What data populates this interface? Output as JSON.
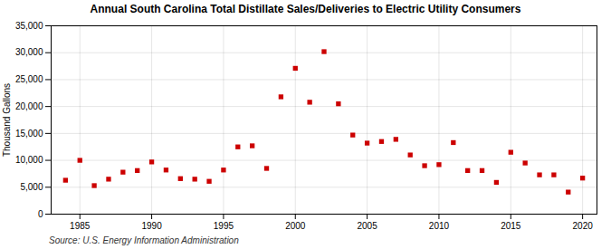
{
  "chart_data": {
    "type": "scatter",
    "title": "Annual South Carolina Total Distillate Sales/Deliveries to Electric Utility Consumers",
    "ylabel": "Thousand Gallons",
    "source": "Source: U.S. Energy Information Administration",
    "x": [
      1984,
      1985,
      1986,
      1987,
      1988,
      1989,
      1990,
      1991,
      1992,
      1993,
      1994,
      1995,
      1996,
      1997,
      1998,
      1999,
      2000,
      2001,
      2002,
      2003,
      2004,
      2005,
      2006,
      2007,
      2008,
      2009,
      2010,
      2011,
      2012,
      2013,
      2014,
      2015,
      2016,
      2017,
      2018,
      2019,
      2020
    ],
    "values": [
      6300,
      10000,
      5300,
      6500,
      7800,
      8100,
      9700,
      8200,
      6600,
      6500,
      6100,
      8200,
      12500,
      12700,
      8500,
      21800,
      27100,
      20800,
      30200,
      20500,
      14700,
      13200,
      13500,
      13900,
      11000,
      9000,
      9200,
      13300,
      8100,
      8100,
      5900,
      11500,
      9500,
      7300,
      7300,
      4100,
      6700
    ],
    "color": "#cc0000",
    "marker": "square",
    "xlim": [
      1983,
      2021
    ],
    "xticks": [
      1985,
      1990,
      1995,
      2000,
      2005,
      2010,
      2015,
      2020
    ],
    "ylim": [
      0,
      35000
    ],
    "yticks": [
      0,
      {
        "value": 5000,
        "label": "5,000"
      },
      {
        "value": 10000,
        "label": "10,000"
      },
      {
        "value": 15000,
        "label": "15,000"
      },
      {
        "value": 20000,
        "label": "20,000"
      },
      {
        "value": 25000,
        "label": "25,000"
      },
      {
        "value": 30000,
        "label": "30,000"
      },
      {
        "value": 35000,
        "label": "35,000"
      }
    ],
    "grid": true
  }
}
